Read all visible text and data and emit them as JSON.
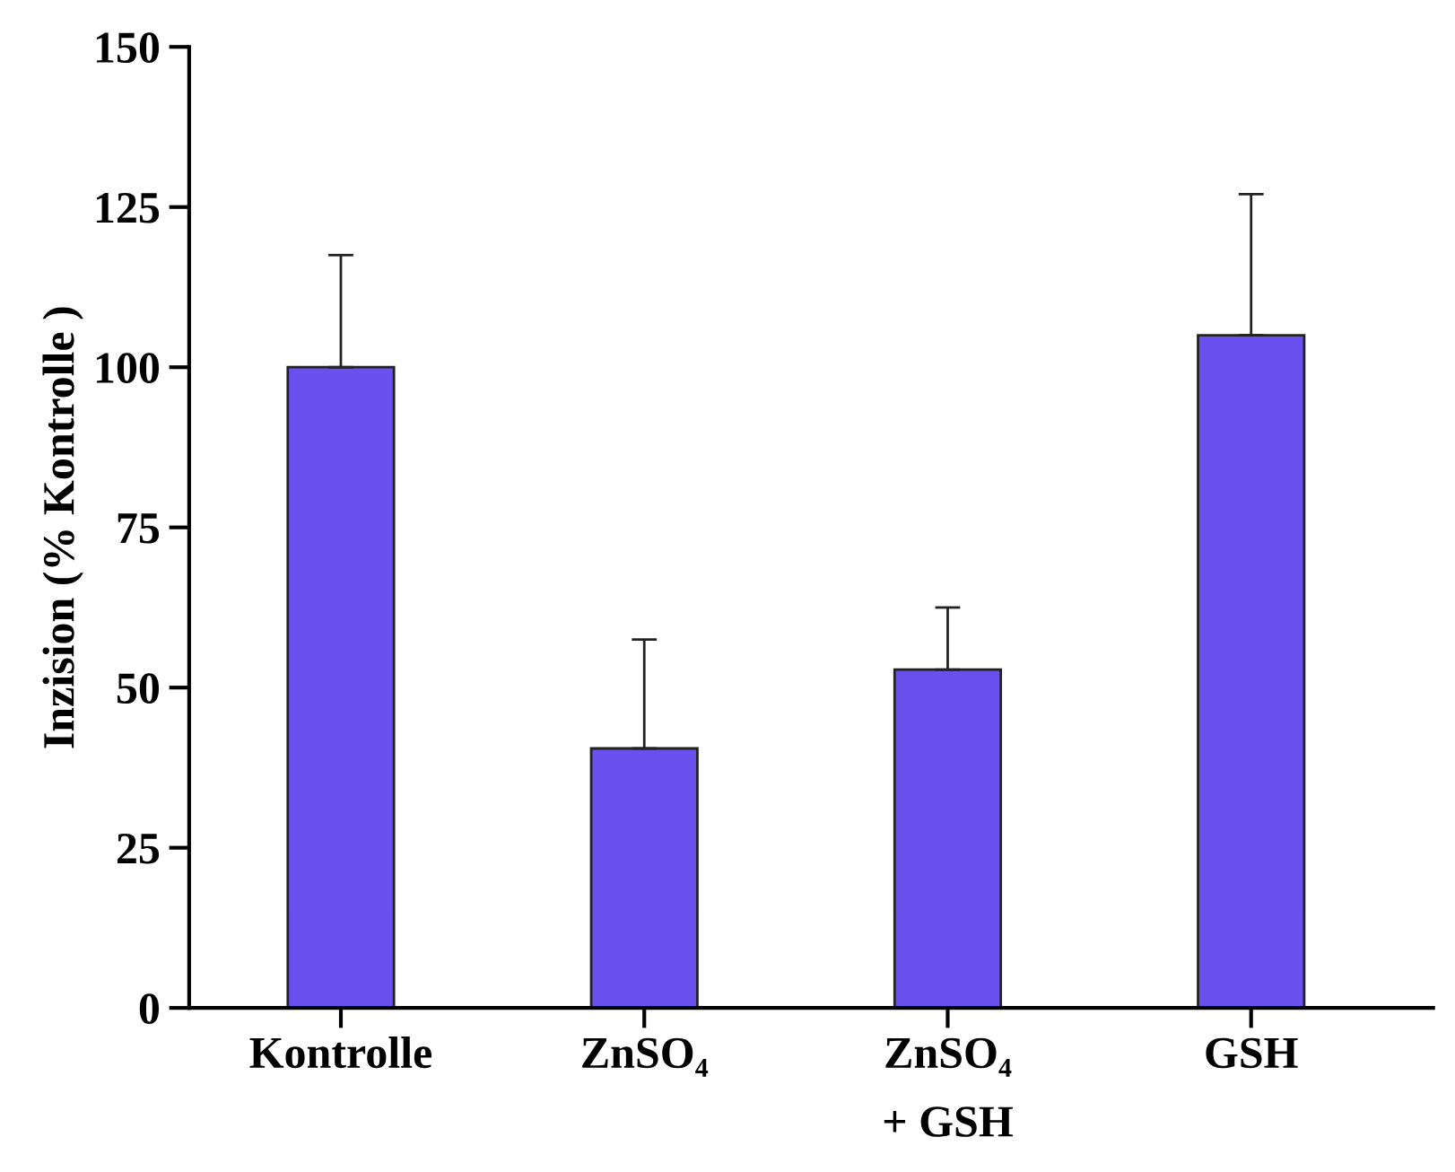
{
  "chart_data": {
    "type": "bar",
    "ylabel": "Inzision (% Kontrolle )",
    "categories": [
      "Kontrolle",
      "ZnSO₄",
      "ZnSO₄\n+ GSH",
      "GSH"
    ],
    "values": [
      100,
      40.5,
      52.8,
      105
    ],
    "errors": [
      [
        100,
        117.5
      ],
      [
        40.5,
        57.5
      ],
      [
        52.8,
        62.5
      ],
      [
        105,
        127
      ]
    ],
    "color": "#6a50ee",
    "ylim": [
      0,
      150
    ],
    "yticks": [
      0,
      25,
      50,
      75,
      100,
      125,
      150
    ],
    "grid": false
  }
}
